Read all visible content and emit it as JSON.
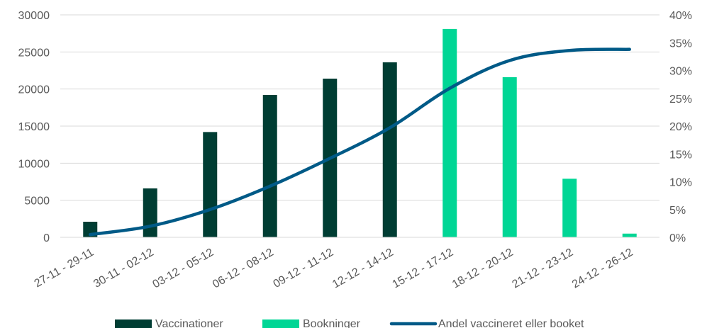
{
  "chart_data": {
    "type": "bar",
    "categories": [
      "27-11 - 29-11",
      "30-11 - 02-12",
      "03-12 - 05-12",
      "06-12 - 08-12",
      "09-12 - 11-12",
      "12-12 - 14-12",
      "15-12 - 17-12",
      "18-12 - 20-12",
      "21-12 - 23-12",
      "24-12 - 26-12"
    ],
    "series": [
      {
        "name": "Vaccinationer",
        "type": "bar",
        "axis": "left",
        "color": "#003d33",
        "values": [
          2100,
          6600,
          14200,
          19200,
          21400,
          23600,
          null,
          null,
          null,
          null
        ]
      },
      {
        "name": "Bookninger",
        "type": "bar",
        "axis": "left",
        "color": "#00d695",
        "values": [
          null,
          null,
          null,
          null,
          null,
          null,
          28100,
          21600,
          7900,
          500
        ]
      },
      {
        "name": "Andel vaccineret eller booket",
        "type": "line",
        "axis": "right",
        "color": "#005a87",
        "values": [
          0.5,
          2.0,
          5.0,
          9.2,
          14.2,
          19.7,
          26.8,
          31.8,
          33.6,
          33.8
        ]
      }
    ],
    "y_left": {
      "min": 0,
      "max": 30000,
      "ticks": [
        "0",
        "5000",
        "10000",
        "15000",
        "20000",
        "25000",
        "30000"
      ]
    },
    "y_right": {
      "min": 0,
      "max": 40,
      "ticks": [
        "0%",
        "5%",
        "10%",
        "15%",
        "20%",
        "25%",
        "30%",
        "35%",
        "40%"
      ]
    },
    "grid": true,
    "legend_position": "bottom"
  }
}
